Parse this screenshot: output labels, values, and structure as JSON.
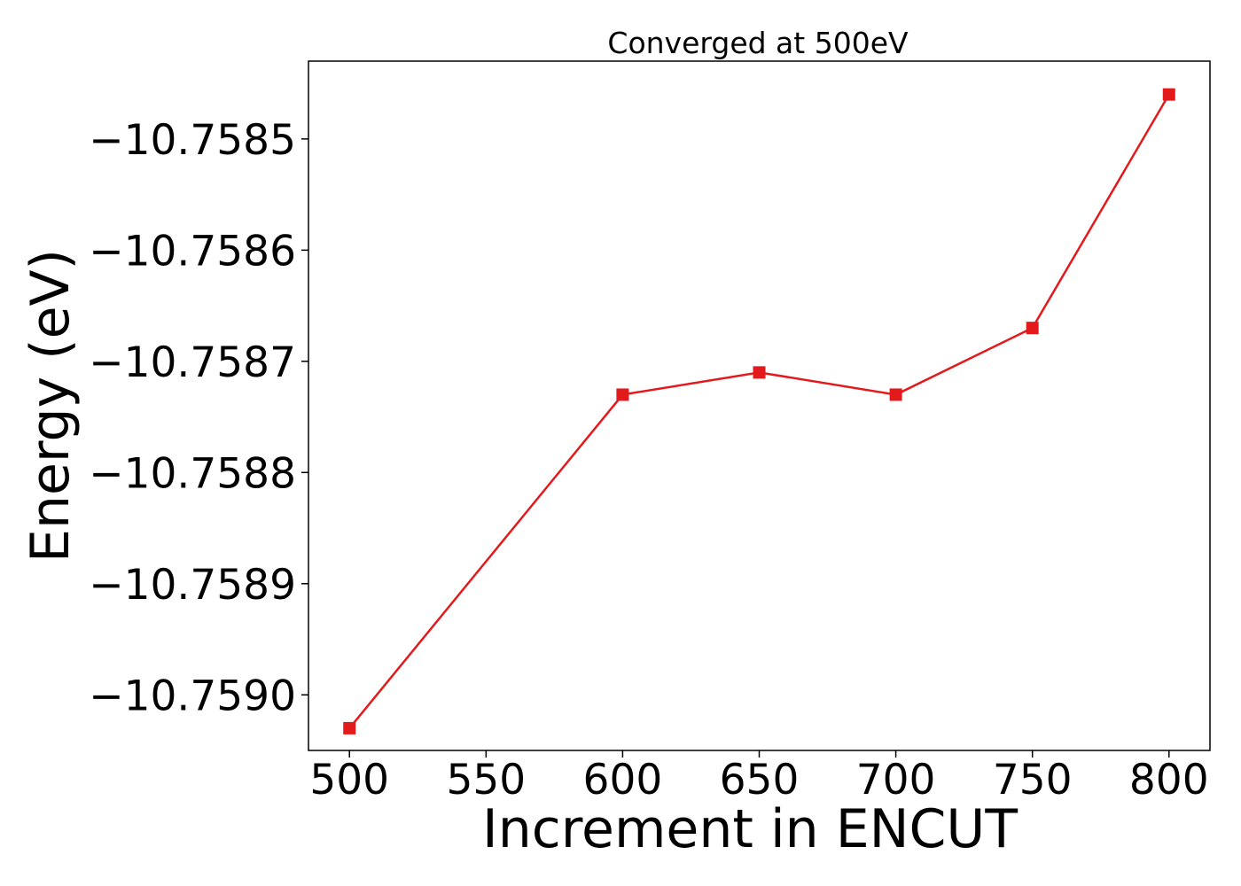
{
  "chart_data": {
    "type": "line",
    "title": "Converged at 500eV",
    "xlabel": "Increment in ENCUT",
    "ylabel": "Energy (eV)",
    "x": [
      500,
      600,
      650,
      700,
      750,
      800
    ],
    "series": [
      {
        "values": [
          -10.75903,
          -10.75873,
          -10.75871,
          -10.75873,
          -10.75867,
          -10.75846
        ],
        "color": "#e31a1c",
        "marker": "square"
      }
    ],
    "xticks": [
      500,
      550,
      600,
      650,
      700,
      750,
      800
    ],
    "xtick_labels": [
      "500",
      "550",
      "600",
      "650",
      "700",
      "750",
      "800"
    ],
    "yticks": [
      -10.7585,
      -10.7586,
      -10.7587,
      -10.7588,
      -10.7589,
      -10.759
    ],
    "ytick_labels": [
      "−10.7585",
      "−10.7586",
      "−10.7587",
      "−10.7588",
      "−10.7589",
      "−10.7590"
    ],
    "xlim": [
      485,
      815
    ],
    "ylim": [
      -10.75905,
      -10.75843
    ],
    "grid": false,
    "legend": false
  }
}
